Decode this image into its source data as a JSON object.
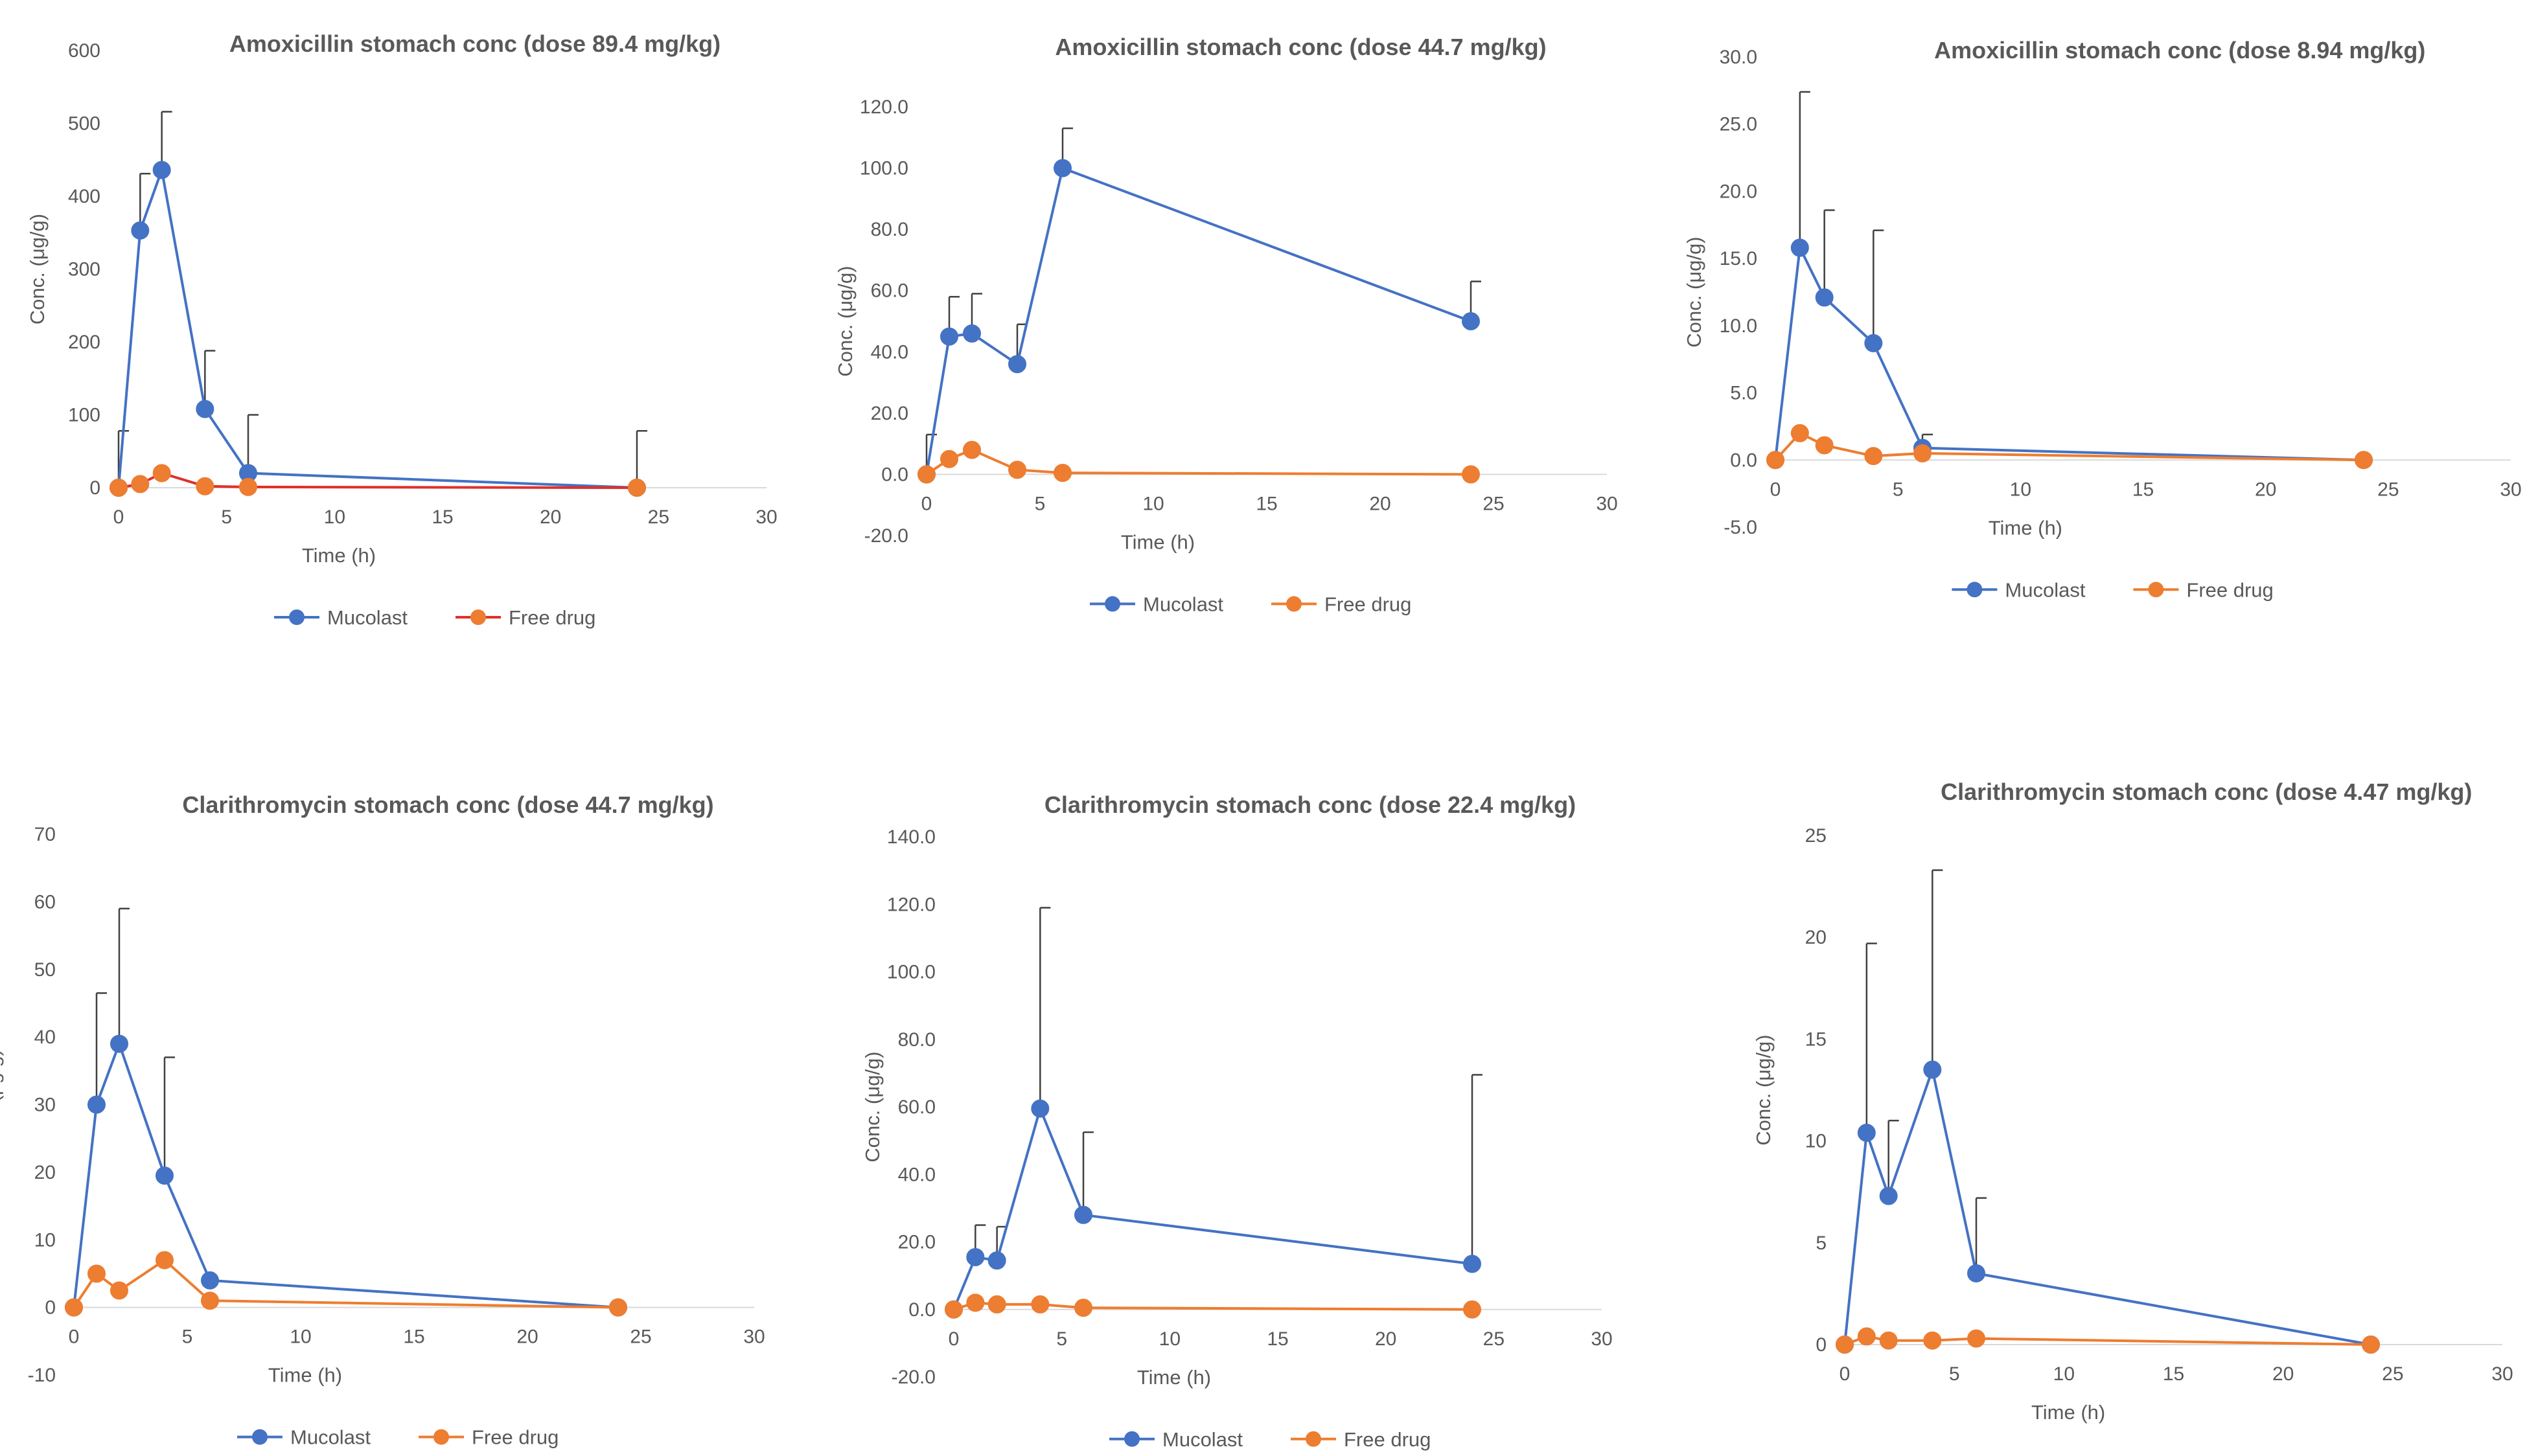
{
  "colors": {
    "mucolast": "#4472C4",
    "free_drug": "#ED7D31",
    "free_drug_line_alt": "#E0302A",
    "text": "#595959",
    "axis": "#D9D9D9",
    "error_bar": "#404040"
  },
  "chart_data": [
    {
      "type": "line",
      "title": "Amoxicillin stomach conc (dose 89.4 mg/kg)",
      "xlabel": "Time (h)",
      "ylabel": "Conc. (μg/g)",
      "xlim": [
        0,
        30
      ],
      "ylim": [
        0,
        600
      ],
      "xticks": [
        0,
        5,
        10,
        15,
        20,
        25,
        30
      ],
      "xtick_labels": [
        "0",
        "5",
        "10",
        "15",
        "20",
        "25",
        "30"
      ],
      "yticks": [
        0,
        100,
        200,
        300,
        400,
        500,
        600
      ],
      "ytick_labels": [
        "0",
        "100",
        "200",
        "300",
        "400",
        "500",
        "600"
      ],
      "legend_position": "bottom",
      "grid": false,
      "series": [
        {
          "name": "Mucolast",
          "color": "#4472C4",
          "x": [
            0,
            1,
            2,
            4,
            6,
            24
          ],
          "values": [
            0,
            353,
            436,
            108,
            20,
            0
          ],
          "error": [
            78,
            78,
            80,
            80,
            80,
            78
          ]
        },
        {
          "name": "Free drug",
          "color": "#ED7D31",
          "line_color": "#E0302A",
          "x": [
            0,
            1,
            2,
            4,
            6,
            24
          ],
          "values": [
            0,
            5,
            20,
            2,
            1,
            0
          ],
          "error": [
            0,
            0,
            0,
            0,
            0,
            0
          ]
        }
      ]
    },
    {
      "type": "line",
      "title": "Amoxicillin stomach conc (dose 44.7 mg/kg)",
      "xlabel": "Time (h)",
      "ylabel": "Conc. (μg/g)",
      "xlim": [
        0,
        30
      ],
      "ylim": [
        -20,
        120
      ],
      "xticks": [
        0,
        5,
        10,
        15,
        20,
        25,
        30
      ],
      "xtick_labels": [
        "0",
        "5",
        "10",
        "15",
        "20",
        "25",
        "30"
      ],
      "yticks": [
        -20,
        0,
        20,
        40,
        60,
        80,
        100,
        120
      ],
      "ytick_labels": [
        "-20.0",
        "0.0",
        "20.0",
        "40.0",
        "60.0",
        "80.0",
        "100.0",
        "120.0"
      ],
      "legend_position": "bottom",
      "grid": false,
      "series": [
        {
          "name": "Mucolast",
          "color": "#4472C4",
          "x": [
            0,
            1,
            2,
            4,
            6,
            24
          ],
          "values": [
            0,
            45,
            46,
            36,
            100,
            50
          ],
          "error": [
            13,
            13,
            13,
            13,
            13,
            13
          ]
        },
        {
          "name": "Free drug",
          "color": "#ED7D31",
          "x": [
            0,
            1,
            2,
            4,
            6,
            24
          ],
          "values": [
            0,
            5,
            8,
            1.5,
            0.5,
            0
          ],
          "error": [
            0,
            0,
            0,
            0,
            0,
            0
          ]
        }
      ]
    },
    {
      "type": "line",
      "title": "Amoxicillin stomach conc (dose 8.94 mg/kg)",
      "xlabel": "Time (h)",
      "ylabel": "Conc. (μg/g)",
      "xlim": [
        0,
        30
      ],
      "ylim": [
        -5,
        30
      ],
      "xticks": [
        0,
        5,
        10,
        15,
        20,
        25,
        30
      ],
      "xtick_labels": [
        "0",
        "5",
        "10",
        "15",
        "20",
        "25",
        "30"
      ],
      "yticks": [
        -5,
        0,
        5,
        10,
        15,
        20,
        25,
        30
      ],
      "ytick_labels": [
        "-5.0",
        "0.0",
        "5.0",
        "10.0",
        "15.0",
        "20.0",
        "25.0",
        "30.0"
      ],
      "legend_position": "bottom",
      "grid": false,
      "series": [
        {
          "name": "Mucolast",
          "color": "#4472C4",
          "x": [
            0,
            1,
            2,
            4,
            6,
            24
          ],
          "values": [
            0,
            15.8,
            12.1,
            8.7,
            0.9,
            0
          ],
          "error": [
            0,
            11.6,
            6.5,
            8.4,
            1.0,
            0
          ]
        },
        {
          "name": "Free drug",
          "color": "#ED7D31",
          "x": [
            0,
            1,
            2,
            4,
            6,
            24
          ],
          "values": [
            0,
            2.0,
            1.1,
            0.3,
            0.5,
            0
          ],
          "error": [
            0,
            0,
            0,
            0,
            0,
            0
          ]
        }
      ]
    },
    {
      "type": "line",
      "title": "Clarithromycin stomach conc (dose 44.7 mg/kg)",
      "xlabel": "Time (h)",
      "ylabel": "Conc. (μg/g)",
      "xlim": [
        0,
        30
      ],
      "ylim": [
        -10,
        70
      ],
      "xticks": [
        0,
        5,
        10,
        15,
        20,
        25,
        30
      ],
      "xtick_labels": [
        "0",
        "5",
        "10",
        "15",
        "20",
        "25",
        "30"
      ],
      "yticks": [
        -10,
        0,
        10,
        20,
        30,
        40,
        50,
        60,
        70
      ],
      "ytick_labels": [
        "-10",
        "0",
        "10",
        "20",
        "30",
        "40",
        "50",
        "60",
        "70"
      ],
      "legend_position": "bottom",
      "grid": false,
      "series": [
        {
          "name": "Mucolast",
          "color": "#4472C4",
          "x": [
            0,
            1,
            2,
            4,
            6,
            24
          ],
          "values": [
            0,
            30,
            39,
            19.5,
            4,
            0
          ],
          "error": [
            0,
            16.5,
            20,
            17.5,
            0,
            0
          ]
        },
        {
          "name": "Free drug",
          "color": "#ED7D31",
          "x": [
            0,
            1,
            2,
            4,
            6,
            24
          ],
          "values": [
            0,
            5,
            2.5,
            7,
            1,
            0
          ],
          "error": [
            0,
            0,
            0,
            0,
            0,
            0
          ]
        }
      ]
    },
    {
      "type": "line",
      "title": "Clarithromycin stomach conc (dose 22.4 mg/kg)",
      "xlabel": "Time (h)",
      "ylabel": "Conc. (μg/g)",
      "xlim": [
        0,
        30
      ],
      "ylim": [
        -20,
        140
      ],
      "xticks": [
        0,
        5,
        10,
        15,
        20,
        25,
        30
      ],
      "xtick_labels": [
        "0",
        "5",
        "10",
        "15",
        "20",
        "25",
        "30"
      ],
      "yticks": [
        -20,
        0,
        20,
        40,
        60,
        80,
        100,
        120,
        140
      ],
      "ytick_labels": [
        "-20.0",
        "0.0",
        "20.0",
        "40.0",
        "60.0",
        "80.0",
        "100.0",
        "120.0",
        "140.0"
      ],
      "legend_position": "bottom",
      "grid": false,
      "series": [
        {
          "name": "Mucolast",
          "color": "#4472C4",
          "x": [
            0,
            1,
            2,
            4,
            6,
            24
          ],
          "values": [
            0,
            15.5,
            14.5,
            59.5,
            28,
            13.5
          ],
          "error": [
            0,
            9.5,
            10,
            59.5,
            24.5,
            56
          ]
        },
        {
          "name": "Free drug",
          "color": "#ED7D31",
          "x": [
            0,
            1,
            2,
            4,
            6,
            24
          ],
          "values": [
            0,
            2,
            1.5,
            1.5,
            0.5,
            0
          ],
          "error": [
            0,
            0,
            0,
            0,
            0,
            0
          ]
        }
      ]
    },
    {
      "type": "line",
      "title": "Clarithromycin stomach conc (dose 4.47 mg/kg)",
      "xlabel": "Time (h)",
      "ylabel": "Conc. (μg/g)",
      "xlim": [
        0,
        30
      ],
      "ylim": [
        0,
        25
      ],
      "xticks": [
        0,
        5,
        10,
        15,
        20,
        25,
        30
      ],
      "xtick_labels": [
        "0",
        "5",
        "10",
        "15",
        "20",
        "25",
        "30"
      ],
      "yticks": [
        0,
        5,
        10,
        15,
        20,
        25
      ],
      "ytick_labels": [
        "0",
        "5",
        "10",
        "15",
        "20",
        "25"
      ],
      "legend_position": "bottom",
      "grid": false,
      "series": [
        {
          "name": "Mucolast",
          "color": "#4472C4",
          "x": [
            0,
            1,
            2,
            4,
            6,
            24
          ],
          "values": [
            0,
            10.4,
            7.3,
            13.5,
            3.5,
            0
          ],
          "error": [
            0,
            9.3,
            3.7,
            9.8,
            3.7,
            0
          ]
        },
        {
          "name": "Free drug",
          "color": "#ED7D31",
          "x": [
            0,
            1,
            2,
            4,
            6,
            24
          ],
          "values": [
            0,
            0.4,
            0.2,
            0.2,
            0.3,
            0
          ],
          "error": [
            0,
            0,
            0,
            0,
            0,
            0
          ]
        }
      ]
    }
  ]
}
